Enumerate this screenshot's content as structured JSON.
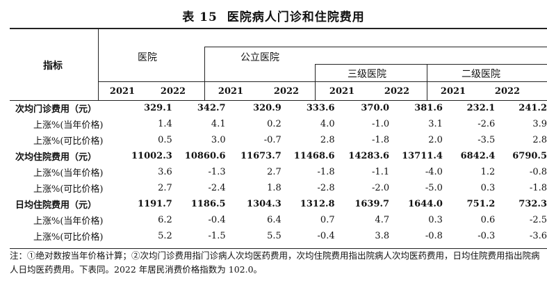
{
  "title": {
    "number": "表 15",
    "text": "医院病人门诊和住院费用"
  },
  "header": {
    "indicator": "指标",
    "hospital": "医院",
    "public": "公立医院",
    "tier3": "三级医院",
    "tier2": "二级医院",
    "years": [
      "2021",
      "2022",
      "2021",
      "2022",
      "2021",
      "2022",
      "2021",
      "2022"
    ]
  },
  "rows": [
    {
      "label": "次均门诊费用（元）",
      "main": true,
      "values": [
        "329.1",
        "342.7",
        "320.9",
        "333.6",
        "370.0",
        "381.6",
        "232.1",
        "241.2"
      ]
    },
    {
      "label": "上涨%(当年价格)",
      "main": false,
      "values": [
        "1.4",
        "4.1",
        "0.2",
        "4.0",
        "-1.0",
        "3.1",
        "-2.6",
        "3.9"
      ]
    },
    {
      "label": "上涨%(可比价格)",
      "main": false,
      "values": [
        "0.5",
        "3.0",
        "-0.7",
        "2.8",
        "-1.8",
        "2.0",
        "-3.5",
        "2.8"
      ]
    },
    {
      "label": "次均住院费用（元）",
      "main": true,
      "values": [
        "11002.3",
        "10860.6",
        "11673.7",
        "11468.6",
        "14283.6",
        "13711.4",
        "6842.4",
        "6790.5"
      ]
    },
    {
      "label": "上涨%(当年价格)",
      "main": false,
      "values": [
        "3.6",
        "-1.3",
        "2.7",
        "-1.8",
        "-1.1",
        "-4.0",
        "1.2",
        "-0.8"
      ]
    },
    {
      "label": "上涨%(可比价格)",
      "main": false,
      "values": [
        "2.7",
        "-2.4",
        "1.8",
        "-2.8",
        "-2.0",
        "-5.0",
        "0.3",
        "-1.8"
      ]
    },
    {
      "label": "日均住院费用（元）",
      "main": true,
      "values": [
        "1191.7",
        "1186.5",
        "1304.3",
        "1312.8",
        "1639.7",
        "1644.0",
        "751.2",
        "732.3"
      ]
    },
    {
      "label": "上涨%(当年价格)",
      "main": false,
      "values": [
        "6.2",
        "-0.4",
        "6.4",
        "0.7",
        "4.7",
        "0.3",
        "0.6",
        "-2.5"
      ]
    },
    {
      "label": "上涨%(可比价格)",
      "main": false,
      "values": [
        "5.2",
        "-1.5",
        "5.5",
        "-0.4",
        "3.8",
        "-0.8",
        "-0.3",
        "-3.6"
      ]
    }
  ],
  "note": "注：①绝对数按当年价格计算；②次均门诊费用指门诊病人次均医药费用，次均住院费用指出院病人次均医药费用，日均住院费用指出院病人日均医药费用。下表同。2022 年居民消费价格指数为 102.0。"
}
